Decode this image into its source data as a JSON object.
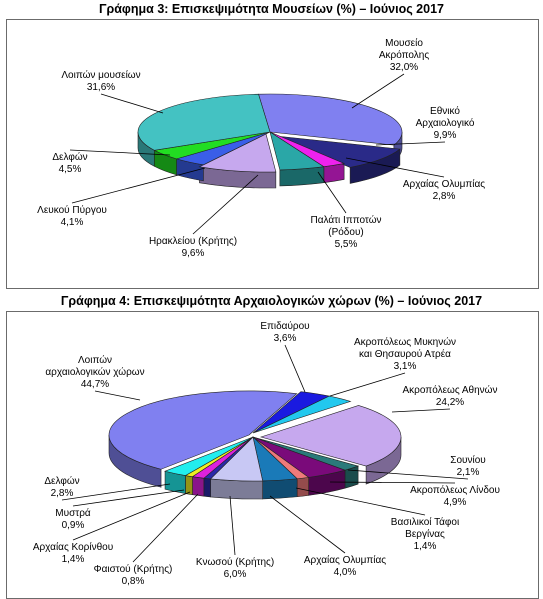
{
  "chart_data": [
    {
      "type": "pie",
      "title": "Γράφημα 3: Επισκεψιμότητα Μουσείων (%) – Ιούνιος  2017",
      "unit": "%",
      "slices": [
        {
          "label": "Μουσείο Ακρόπολης",
          "value": 32.0,
          "value_label": "32,0%",
          "color": "#8080f0"
        },
        {
          "label": "Εθνικό Αρχαιολογικό",
          "value": 9.9,
          "value_label": "9,9%",
          "color": "#2a2a88"
        },
        {
          "label": "Αρχαίας Ολυμπίας",
          "value": 2.8,
          "value_label": "2,8%",
          "color": "#ee22ee"
        },
        {
          "label": "Παλάτι Ιπποτών (Ρόδου)",
          "value": 5.5,
          "value_label": "5,5%",
          "color": "#2aa7a7"
        },
        {
          "label": "Ηρακλείου (Κρήτης)",
          "value": 9.6,
          "value_label": "9,6%",
          "color": "#c6a8ee"
        },
        {
          "label": "Λευκού Πύργου",
          "value": 4.1,
          "value_label": "4,1%",
          "color": "#3a5ee8"
        },
        {
          "label": "Δελφών",
          "value": 4.5,
          "value_label": "4,5%",
          "color": "#22dd22"
        },
        {
          "label": "Λοιπών μουσείων",
          "value": 31.6,
          "value_label": "31,6%",
          "color": "#44c2c2"
        }
      ]
    },
    {
      "type": "pie",
      "title": "Γράφημα 4: Επισκεψιμότητα Αρχαιολογικών χώρων (%) – Ιούνιος 2017",
      "unit": "%",
      "slices": [
        {
          "label": "Επιδαύρου",
          "value": 3.6,
          "value_label": "3,6%",
          "color": "#1a1ae0"
        },
        {
          "label": "Ακροπόλεως Μυκηνών και Θησαυρού Ατρέα",
          "value": 3.1,
          "value_label": "3,1%",
          "color": "#22c8ee"
        },
        {
          "label": "Ακροπόλεως Αθηνών",
          "value": 24.2,
          "value_label": "24,2%",
          "color": "#c6a8ee"
        },
        {
          "label": "Σουνίου",
          "value": 2.1,
          "value_label": "2,1%",
          "color": "#2a7a7a"
        },
        {
          "label": "Ακροπόλεως Λίνδου",
          "value": 4.9,
          "value_label": "4,9%",
          "color": "#7a0a7a"
        },
        {
          "label": "Βασιλικοί Τάφοι Βεργίνας",
          "value": 1.4,
          "value_label": "1,4%",
          "color": "#ee7a7a"
        },
        {
          "label": "Αρχαίας Ολυμπίας",
          "value": 4.0,
          "value_label": "4,0%",
          "color": "#1a7ab8"
        },
        {
          "label": "Κνωσού (Κρήτης)",
          "value": 6.0,
          "value_label": "6,0%",
          "color": "#c8c8f4"
        },
        {
          "label": "Φαιστού (Κρήτης)",
          "value": 0.8,
          "value_label": "0,8%",
          "color": "#2a2aa8"
        },
        {
          "label": "Αρχαίας Κορίνθου",
          "value": 1.4,
          "value_label": "1,4%",
          "color": "#dd22dd"
        },
        {
          "label": "Μυστρά",
          "value": 0.9,
          "value_label": "0,9%",
          "color": "#eeee22"
        },
        {
          "label": "Δελφών",
          "value": 2.8,
          "value_label": "2,8%",
          "color": "#22eeee"
        },
        {
          "label": "Λοιπών αρχαιολογικών χώρων",
          "value": 44.7,
          "value_label": "44,7%",
          "color": "#8080f0"
        }
      ]
    }
  ]
}
